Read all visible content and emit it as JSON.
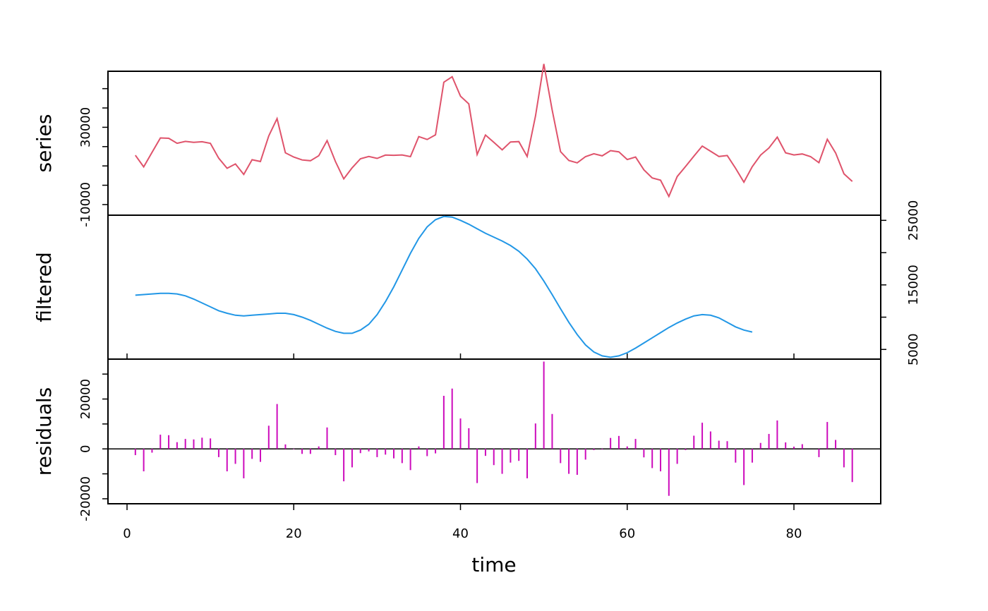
{
  "chart_data": {
    "type": "line",
    "xlabel": "time",
    "xlim": [
      0,
      90
    ],
    "x_ticks": [
      0,
      20,
      40,
      60,
      80
    ],
    "x": [
      1,
      2,
      3,
      4,
      5,
      6,
      7,
      8,
      9,
      10,
      11,
      12,
      13,
      14,
      15,
      16,
      17,
      18,
      19,
      20,
      21,
      22,
      23,
      24,
      25,
      26,
      27,
      28,
      29,
      30,
      31,
      32,
      33,
      34,
      35,
      36,
      37,
      38,
      39,
      40,
      41,
      42,
      43,
      44,
      45,
      46,
      47,
      48,
      49,
      50,
      51,
      52,
      53,
      54,
      55,
      56,
      57,
      58,
      59,
      60,
      61,
      62,
      63,
      64,
      65,
      66,
      67,
      68,
      69,
      70,
      71,
      72,
      73,
      74,
      75,
      76,
      77,
      78,
      79,
      80,
      81,
      82,
      83,
      84,
      85,
      86,
      87
    ],
    "panels": [
      {
        "name": "series",
        "ylabel": "series",
        "style": "line",
        "color": "#DF536B",
        "ylim": [
          -15500,
          59000
        ],
        "y_ticks": [
          -10000,
          30000
        ],
        "y_minor_ticks": [
          -10000,
          0,
          10000,
          20000,
          30000,
          40000,
          50000
        ],
        "tick_side": "left",
        "values": [
          15500,
          9500,
          17000,
          24500,
          24300,
          21700,
          22700,
          22200,
          22500,
          21700,
          14000,
          8800,
          11000,
          5600,
          13200,
          12300,
          25500,
          34500,
          16800,
          14600,
          13100,
          12700,
          15300,
          23100,
          12300,
          3300,
          9000,
          13700,
          14900,
          13900,
          15600,
          15500,
          15700,
          14800,
          25200,
          23700,
          26100,
          53300,
          56200,
          46100,
          42100,
          15900,
          26000,
          22200,
          18300,
          22400,
          22600,
          14900,
          35800,
          62800,
          39000,
          17400,
          12800,
          11600,
          14800,
          16300,
          15200,
          17900,
          17300,
          13300,
          14600,
          8000,
          3800,
          2600,
          -5800,
          4500,
          9700,
          15100,
          20300,
          17600,
          14900,
          15400,
          8800,
          1600,
          9600,
          15600,
          19300,
          24900,
          16800,
          15700,
          16200,
          14800,
          11700,
          23800,
          16700,
          5900,
          2000
        ]
      },
      {
        "name": "filtered",
        "ylabel": "filtered",
        "style": "line",
        "color": "#2297E6",
        "ylim": [
          3500,
          25800
        ],
        "y_ticks": [
          5000,
          15000,
          25000
        ],
        "y_minor_ticks": [
          5000,
          10000,
          15000,
          20000,
          25000
        ],
        "tick_side": "right",
        "values": [
          13400,
          13500,
          13600,
          13700,
          13700,
          13600,
          13300,
          12800,
          12200,
          11600,
          11000,
          10600,
          10300,
          10200,
          10300,
          10400,
          10500,
          10600,
          10600,
          10400,
          10000,
          9500,
          8900,
          8300,
          7800,
          7500,
          7500,
          8000,
          8900,
          10400,
          12400,
          14700,
          17300,
          19900,
          22200,
          24000,
          25100,
          25600,
          25500,
          25000,
          24400,
          23700,
          23000,
          22400,
          21800,
          21100,
          20200,
          19000,
          17500,
          15600,
          13500,
          11300,
          9200,
          7300,
          5700,
          4600,
          4000,
          3800,
          4000,
          4500,
          5200,
          6000,
          6800,
          7600,
          8400,
          9100,
          9700,
          10200,
          10400,
          10300,
          9900,
          9200,
          8500,
          8000,
          7700
        ]
      },
      {
        "name": "residuals",
        "ylabel": "residuals",
        "style": "histogram",
        "color": "#CD0BBC",
        "ylim": [
          -22000,
          36000
        ],
        "y_ticks": [
          -20000,
          0,
          20000
        ],
        "y_minor_ticks": [
          -20000,
          -10000,
          0,
          10000,
          20000,
          30000
        ],
        "tick_side": "left",
        "values": [
          -2500,
          -9000,
          -1500,
          5700,
          5500,
          2700,
          4000,
          3800,
          4500,
          4200,
          -3300,
          -9000,
          -6000,
          -11800,
          -4000,
          -5200,
          9300,
          18000,
          1800,
          -200,
          -2000,
          -2000,
          1000,
          8600,
          -2500,
          -13000,
          -7400,
          -1700,
          -1000,
          -3300,
          -2300,
          -3800,
          -5700,
          -8500,
          1000,
          -2900,
          -1800,
          21300,
          24200,
          12200,
          8300,
          -13700,
          -2800,
          -6500,
          -10000,
          -5500,
          -4800,
          -11800,
          10200,
          35000,
          14000,
          -5700,
          -10000,
          -10400,
          -4300,
          -500,
          -300,
          4400,
          5200,
          1000,
          4000,
          -3400,
          -7700,
          -9000,
          -18800,
          -6000,
          -500,
          5300,
          10500,
          7000,
          3300,
          3100,
          -5500,
          -14500,
          -5500,
          2400,
          6000,
          11400,
          2600,
          900,
          1900,
          0,
          -3300,
          10800,
          3600,
          -7400,
          -13300
        ]
      }
    ]
  }
}
